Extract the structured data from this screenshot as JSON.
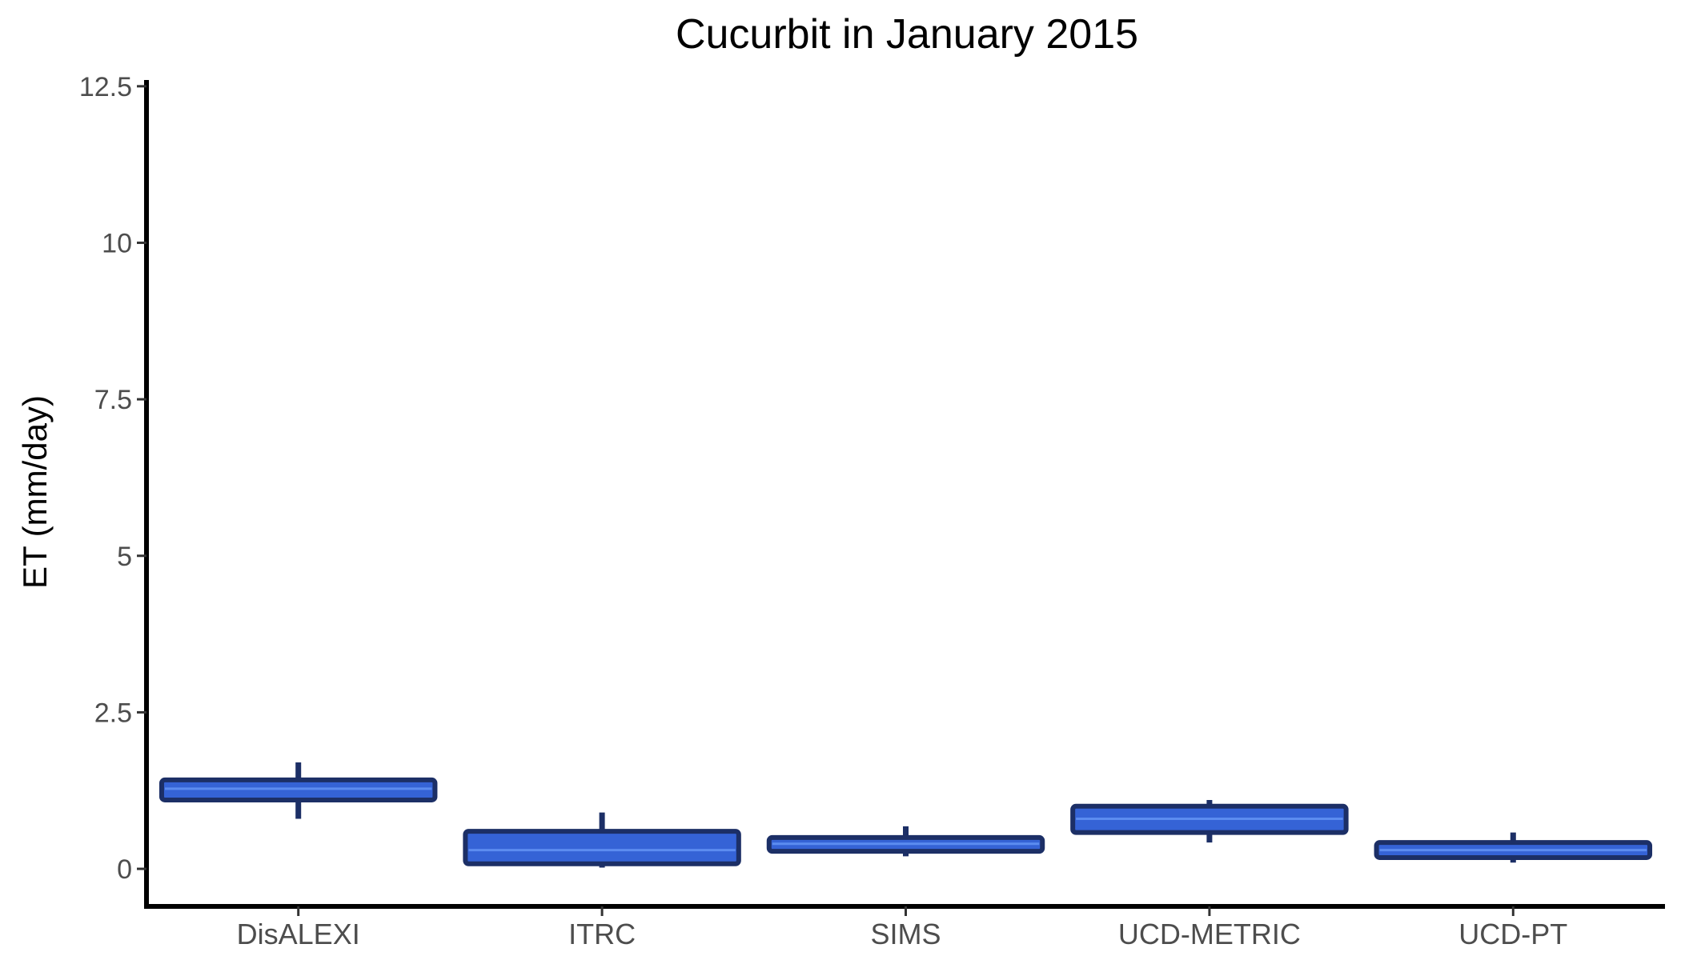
{
  "chart_data": {
    "type": "boxplot",
    "title": "Cucurbit in January 2015",
    "xlabel": "",
    "ylabel": "ET (mm/day)",
    "ylim": [
      -0.6,
      12.6
    ],
    "yticks": [
      0,
      2.5,
      5,
      7.5,
      10,
      12.5
    ],
    "ytick_labels": [
      "0",
      "2.5",
      "5",
      "7.5",
      "10",
      "12.5"
    ],
    "grid": false,
    "legend": "none",
    "categories": [
      "DisALEXI",
      "ITRC",
      "SIMS",
      "UCD-METRIC",
      "UCD-PT"
    ],
    "boxes": [
      {
        "category": "DisALEXI",
        "min": 0.8,
        "q1": 1.1,
        "median": 1.28,
        "q3": 1.42,
        "max": 1.7
      },
      {
        "category": "ITRC",
        "min": 0.02,
        "q1": 0.08,
        "median": 0.3,
        "q3": 0.6,
        "max": 0.9
      },
      {
        "category": "SIMS",
        "min": 0.2,
        "q1": 0.28,
        "median": 0.4,
        "q3": 0.5,
        "max": 0.68
      },
      {
        "category": "UCD-METRIC",
        "min": 0.42,
        "q1": 0.58,
        "median": 0.8,
        "q3": 1.0,
        "max": 1.1
      },
      {
        "category": "UCD-PT",
        "min": 0.1,
        "q1": 0.18,
        "median": 0.3,
        "q3": 0.42,
        "max": 0.58
      }
    ],
    "colors": {
      "box_fill": "#3563d6",
      "box_outline": "#1c2f66",
      "median_line": "#5c8cf0",
      "axis": "#000000"
    }
  }
}
